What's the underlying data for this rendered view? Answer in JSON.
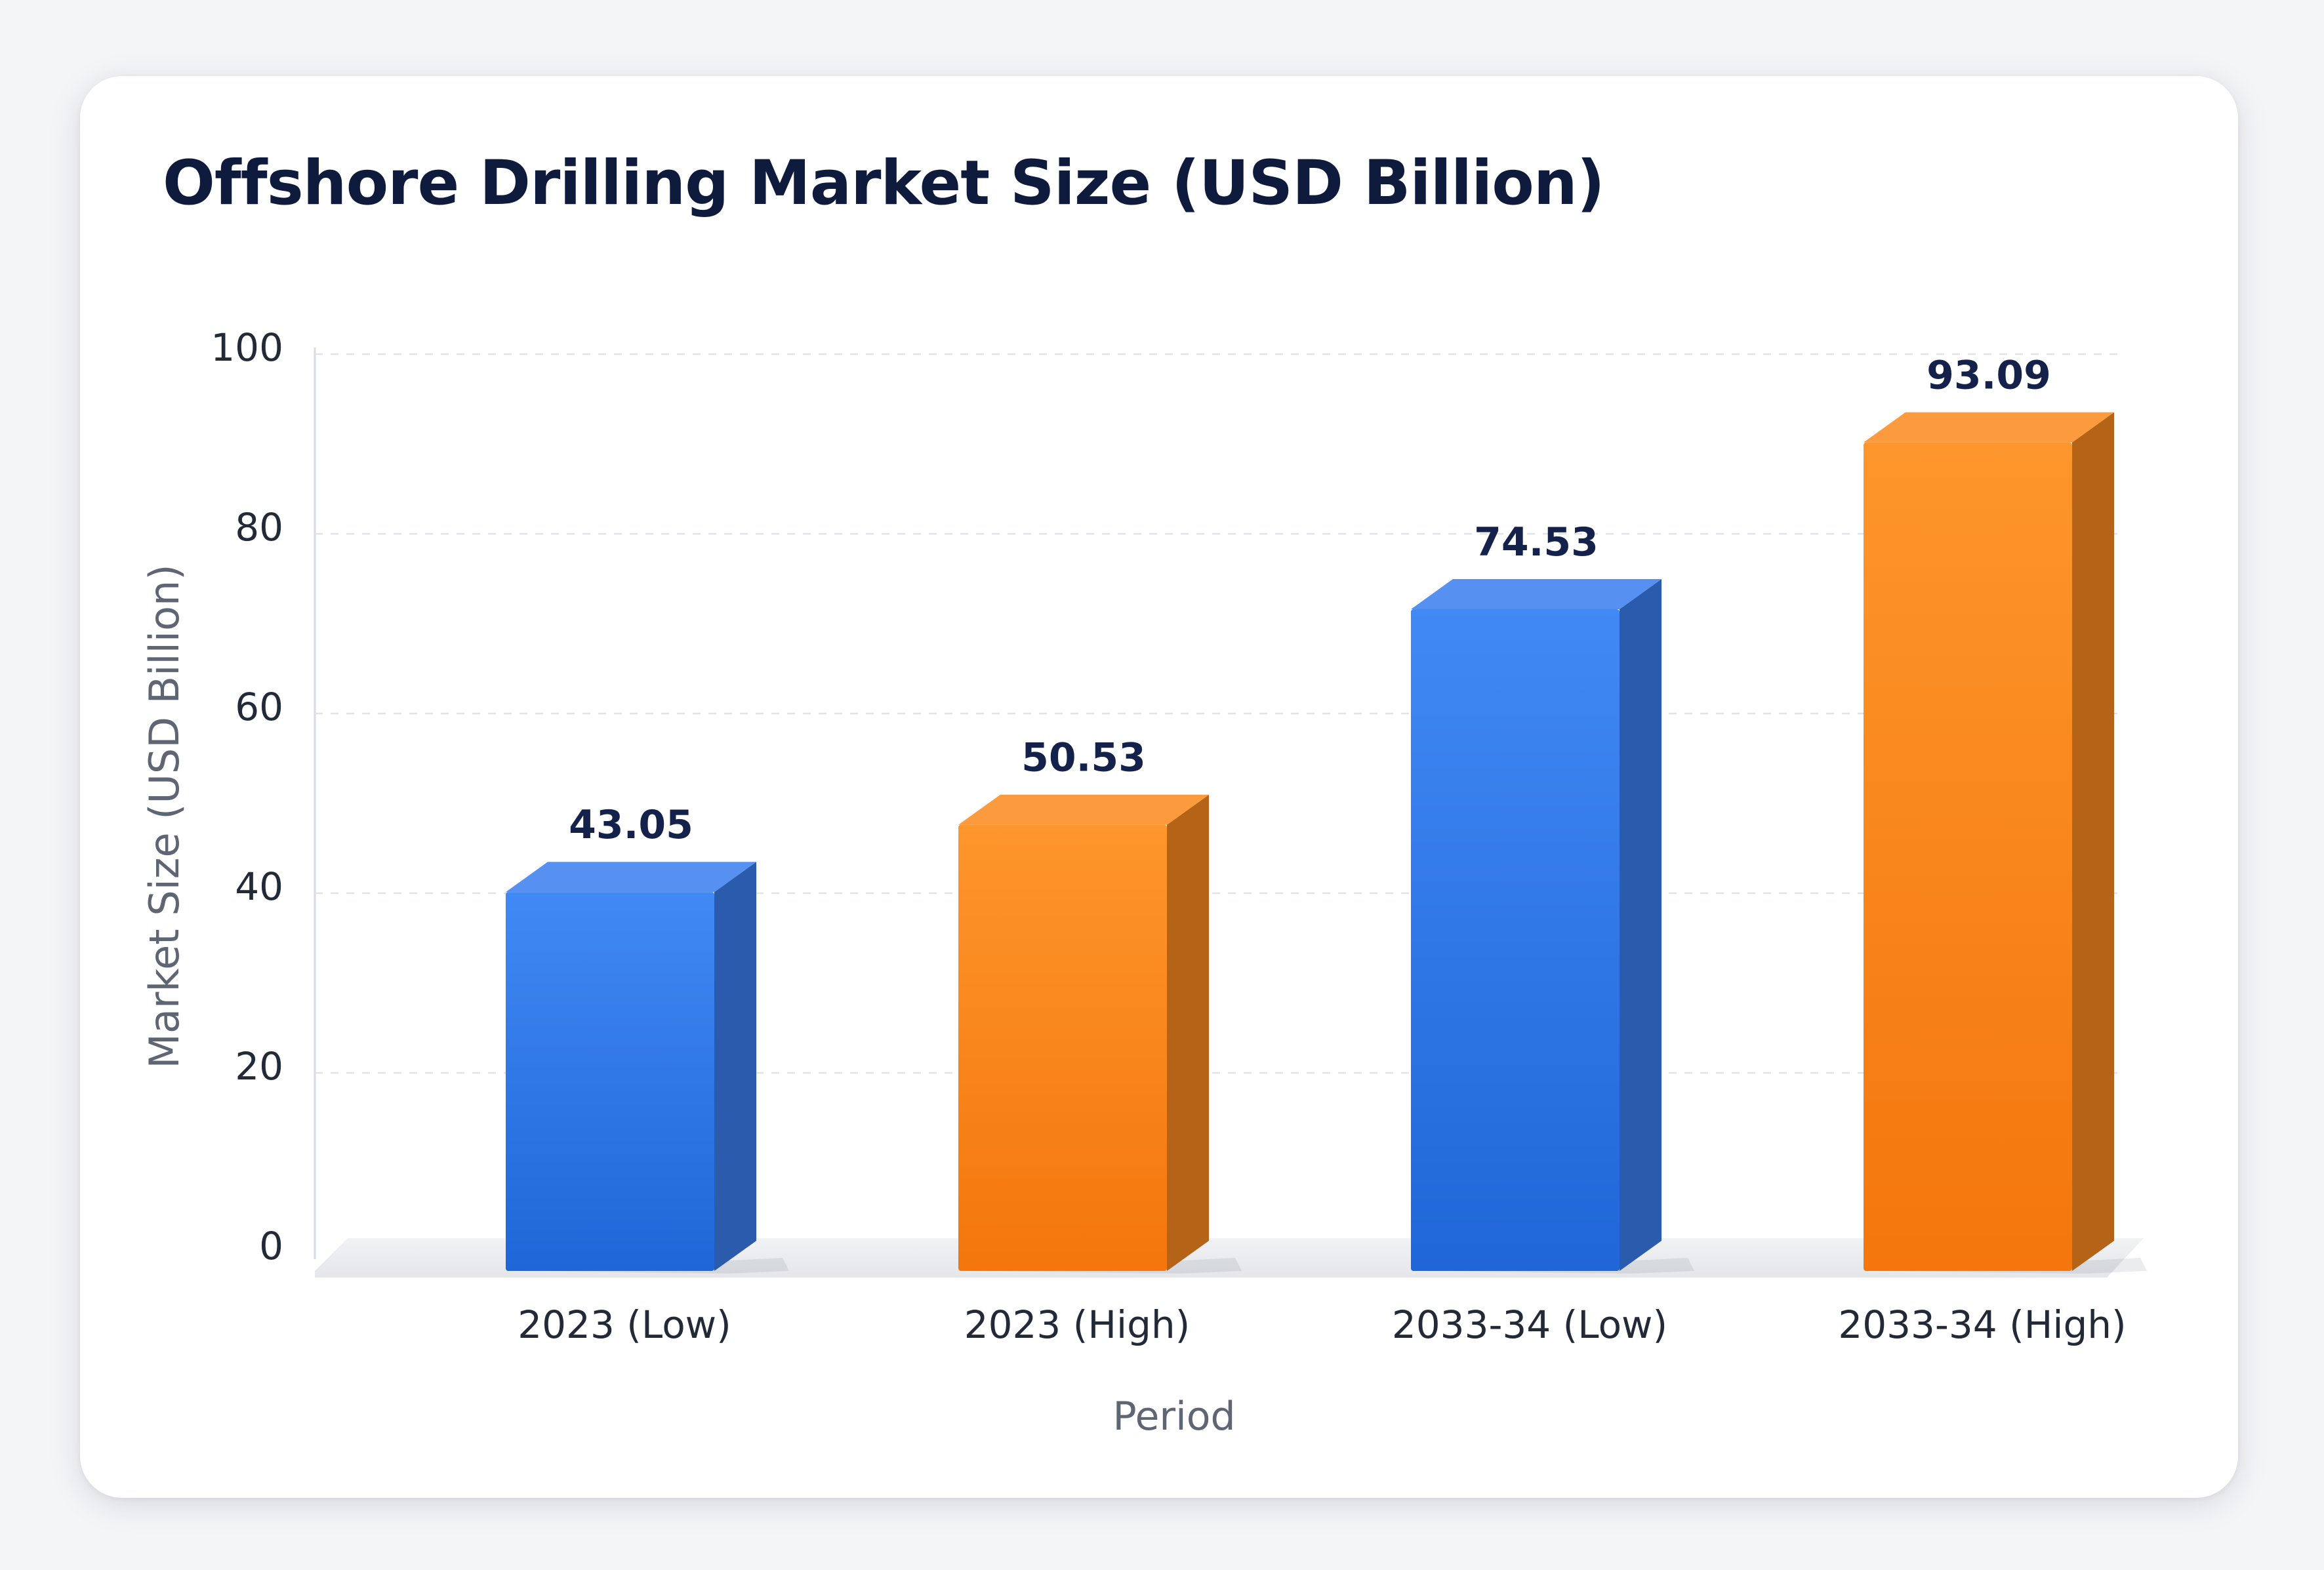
{
  "chart_data": {
    "type": "bar",
    "title": "Offshore Drilling Market Size (USD Billion)",
    "xlabel": "Period",
    "ylabel": "Market Size (USD Billion)",
    "categories": [
      "2023 (Low)",
      "2023 (High)",
      "2033-34 (Low)",
      "2033-34 (High)"
    ],
    "values": [
      43.05,
      50.53,
      74.53,
      93.09
    ],
    "value_labels": [
      "43.05",
      "50.53",
      "74.53",
      "93.09"
    ],
    "bar_colors": [
      "#3b7ff0",
      "#fb8a1e",
      "#3b7ff0",
      "#fb8a1e"
    ],
    "ylim": [
      0,
      100
    ],
    "yticks": [
      0,
      20,
      40,
      60,
      80,
      100
    ],
    "ytick_labels": [
      "0",
      "20",
      "40",
      "60",
      "80",
      "100"
    ],
    "grid": true,
    "style": "3d"
  }
}
